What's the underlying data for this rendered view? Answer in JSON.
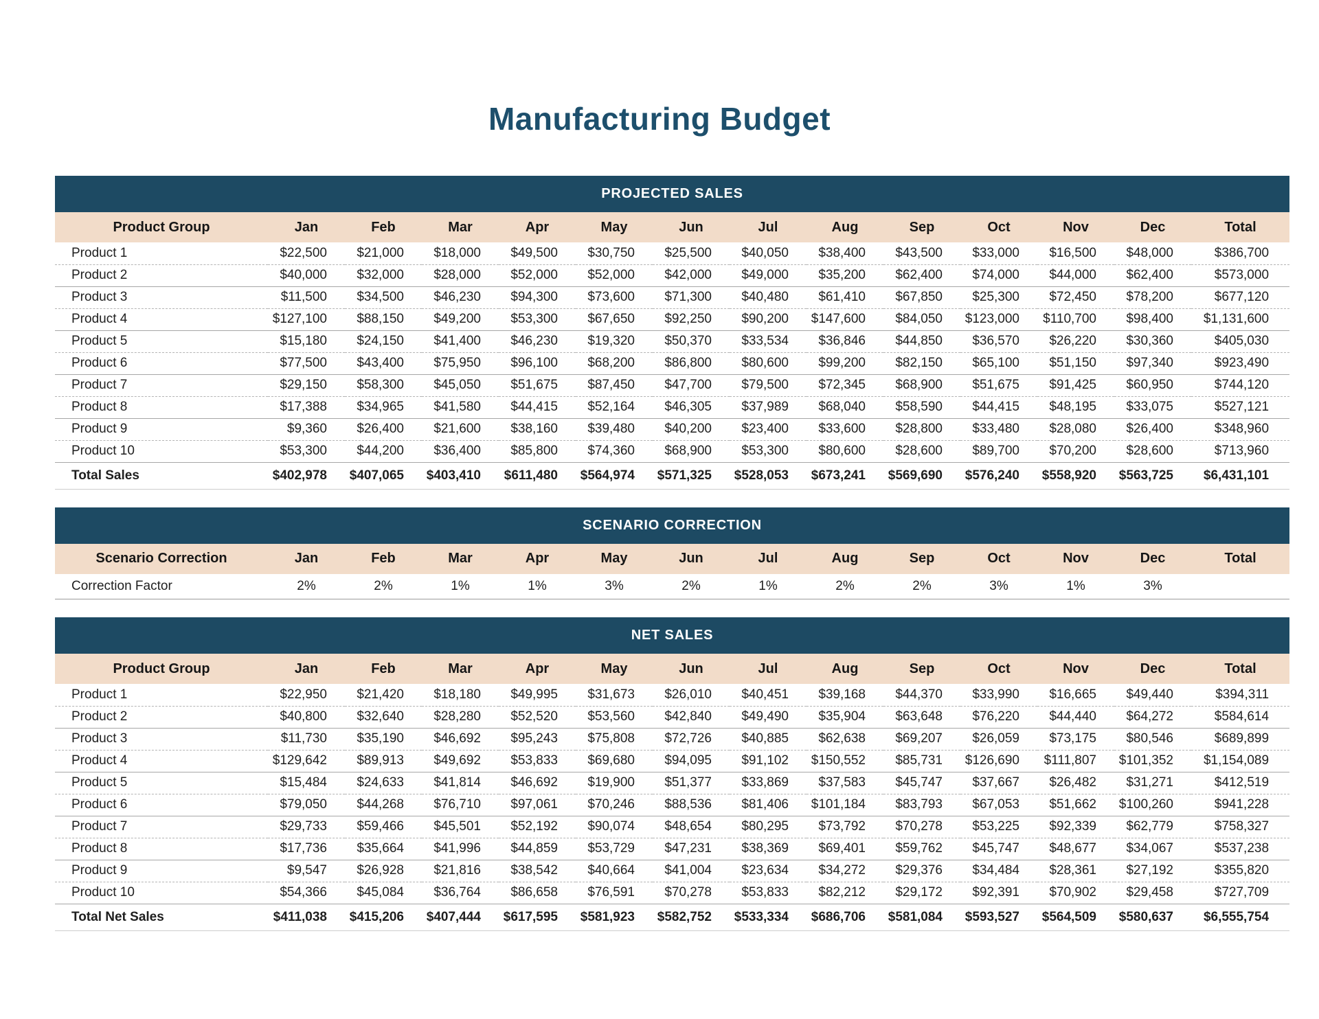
{
  "page": {
    "title": "Manufacturing Budget"
  },
  "months": [
    "Jan",
    "Feb",
    "Mar",
    "Apr",
    "May",
    "Jun",
    "Jul",
    "Aug",
    "Sep",
    "Oct",
    "Nov",
    "Dec"
  ],
  "colors": {
    "navy_band": "#1d4a63",
    "peach_band": "#f2dcc9",
    "title_text": "#1d4f6c",
    "grid_line": "#a6a6a6"
  },
  "projected_sales": {
    "section_title": "PROJECTED SALES",
    "col_header_label": "Product Group",
    "total_label": "Total",
    "rows": [
      {
        "label": "Product 1",
        "values": [
          "$22,500",
          "$21,000",
          "$18,000",
          "$49,500",
          "$30,750",
          "$25,500",
          "$40,050",
          "$38,400",
          "$43,500",
          "$33,000",
          "$16,500",
          "$48,000"
        ],
        "total": "$386,700"
      },
      {
        "label": "Product 2",
        "values": [
          "$40,000",
          "$32,000",
          "$28,000",
          "$52,000",
          "$52,000",
          "$42,000",
          "$49,000",
          "$35,200",
          "$62,400",
          "$74,000",
          "$44,000",
          "$62,400"
        ],
        "total": "$573,000"
      },
      {
        "label": "Product 3",
        "values": [
          "$11,500",
          "$34,500",
          "$46,230",
          "$94,300",
          "$73,600",
          "$71,300",
          "$40,480",
          "$61,410",
          "$67,850",
          "$25,300",
          "$72,450",
          "$78,200"
        ],
        "total": "$677,120"
      },
      {
        "label": "Product 4",
        "values": [
          "$127,100",
          "$88,150",
          "$49,200",
          "$53,300",
          "$67,650",
          "$92,250",
          "$90,200",
          "$147,600",
          "$84,050",
          "$123,000",
          "$110,700",
          "$98,400"
        ],
        "total": "$1,131,600"
      },
      {
        "label": "Product 5",
        "values": [
          "$15,180",
          "$24,150",
          "$41,400",
          "$46,230",
          "$19,320",
          "$50,370",
          "$33,534",
          "$36,846",
          "$44,850",
          "$36,570",
          "$26,220",
          "$30,360"
        ],
        "total": "$405,030"
      },
      {
        "label": "Product 6",
        "values": [
          "$77,500",
          "$43,400",
          "$75,950",
          "$96,100",
          "$68,200",
          "$86,800",
          "$80,600",
          "$99,200",
          "$82,150",
          "$65,100",
          "$51,150",
          "$97,340"
        ],
        "total": "$923,490"
      },
      {
        "label": "Product 7",
        "values": [
          "$29,150",
          "$58,300",
          "$45,050",
          "$51,675",
          "$87,450",
          "$47,700",
          "$79,500",
          "$72,345",
          "$68,900",
          "$51,675",
          "$91,425",
          "$60,950"
        ],
        "total": "$744,120"
      },
      {
        "label": "Product 8",
        "values": [
          "$17,388",
          "$34,965",
          "$41,580",
          "$44,415",
          "$52,164",
          "$46,305",
          "$37,989",
          "$68,040",
          "$58,590",
          "$44,415",
          "$48,195",
          "$33,075"
        ],
        "total": "$527,121"
      },
      {
        "label": "Product 9",
        "values": [
          "$9,360",
          "$26,400",
          "$21,600",
          "$38,160",
          "$39,480",
          "$40,200",
          "$23,400",
          "$33,600",
          "$28,800",
          "$33,480",
          "$28,080",
          "$26,400"
        ],
        "total": "$348,960"
      },
      {
        "label": "Product 10",
        "values": [
          "$53,300",
          "$44,200",
          "$36,400",
          "$85,800",
          "$74,360",
          "$68,900",
          "$53,300",
          "$80,600",
          "$28,600",
          "$89,700",
          "$70,200",
          "$28,600"
        ],
        "total": "$713,960"
      }
    ],
    "total_row": {
      "label": "Total Sales",
      "values": [
        "$402,978",
        "$407,065",
        "$403,410",
        "$611,480",
        "$564,974",
        "$571,325",
        "$528,053",
        "$673,241",
        "$569,690",
        "$576,240",
        "$558,920",
        "$563,725"
      ],
      "total": "$6,431,101"
    }
  },
  "scenario_correction": {
    "section_title": "SCENARIO CORRECTION",
    "col_header_label": "Scenario Correction",
    "total_label": "Total",
    "row": {
      "label": "Correction Factor",
      "values": [
        "2%",
        "2%",
        "1%",
        "1%",
        "3%",
        "2%",
        "1%",
        "2%",
        "2%",
        "3%",
        "1%",
        "3%"
      ],
      "total": ""
    }
  },
  "net_sales": {
    "section_title": "NET SALES",
    "col_header_label": "Product Group",
    "total_label": "Total",
    "rows": [
      {
        "label": "Product 1",
        "values": [
          "$22,950",
          "$21,420",
          "$18,180",
          "$49,995",
          "$31,673",
          "$26,010",
          "$40,451",
          "$39,168",
          "$44,370",
          "$33,990",
          "$16,665",
          "$49,440"
        ],
        "total": "$394,311"
      },
      {
        "label": "Product 2",
        "values": [
          "$40,800",
          "$32,640",
          "$28,280",
          "$52,520",
          "$53,560",
          "$42,840",
          "$49,490",
          "$35,904",
          "$63,648",
          "$76,220",
          "$44,440",
          "$64,272"
        ],
        "total": "$584,614"
      },
      {
        "label": "Product 3",
        "values": [
          "$11,730",
          "$35,190",
          "$46,692",
          "$95,243",
          "$75,808",
          "$72,726",
          "$40,885",
          "$62,638",
          "$69,207",
          "$26,059",
          "$73,175",
          "$80,546"
        ],
        "total": "$689,899"
      },
      {
        "label": "Product 4",
        "values": [
          "$129,642",
          "$89,913",
          "$49,692",
          "$53,833",
          "$69,680",
          "$94,095",
          "$91,102",
          "$150,552",
          "$85,731",
          "$126,690",
          "$111,807",
          "$101,352"
        ],
        "total": "$1,154,089"
      },
      {
        "label": "Product 5",
        "values": [
          "$15,484",
          "$24,633",
          "$41,814",
          "$46,692",
          "$19,900",
          "$51,377",
          "$33,869",
          "$37,583",
          "$45,747",
          "$37,667",
          "$26,482",
          "$31,271"
        ],
        "total": "$412,519"
      },
      {
        "label": "Product 6",
        "values": [
          "$79,050",
          "$44,268",
          "$76,710",
          "$97,061",
          "$70,246",
          "$88,536",
          "$81,406",
          "$101,184",
          "$83,793",
          "$67,053",
          "$51,662",
          "$100,260"
        ],
        "total": "$941,228"
      },
      {
        "label": "Product 7",
        "values": [
          "$29,733",
          "$59,466",
          "$45,501",
          "$52,192",
          "$90,074",
          "$48,654",
          "$80,295",
          "$73,792",
          "$70,278",
          "$53,225",
          "$92,339",
          "$62,779"
        ],
        "total": "$758,327"
      },
      {
        "label": "Product 8",
        "values": [
          "$17,736",
          "$35,664",
          "$41,996",
          "$44,859",
          "$53,729",
          "$47,231",
          "$38,369",
          "$69,401",
          "$59,762",
          "$45,747",
          "$48,677",
          "$34,067"
        ],
        "total": "$537,238"
      },
      {
        "label": "Product 9",
        "values": [
          "$9,547",
          "$26,928",
          "$21,816",
          "$38,542",
          "$40,664",
          "$41,004",
          "$23,634",
          "$34,272",
          "$29,376",
          "$34,484",
          "$28,361",
          "$27,192"
        ],
        "total": "$355,820"
      },
      {
        "label": "Product 10",
        "values": [
          "$54,366",
          "$45,084",
          "$36,764",
          "$86,658",
          "$76,591",
          "$70,278",
          "$53,833",
          "$82,212",
          "$29,172",
          "$92,391",
          "$70,902",
          "$29,458"
        ],
        "total": "$727,709"
      }
    ],
    "total_row": {
      "label": "Total Net Sales",
      "values": [
        "$411,038",
        "$415,206",
        "$407,444",
        "$617,595",
        "$581,923",
        "$582,752",
        "$533,334",
        "$686,706",
        "$581,084",
        "$593,527",
        "$564,509",
        "$580,637"
      ],
      "total": "$6,555,754"
    }
  }
}
